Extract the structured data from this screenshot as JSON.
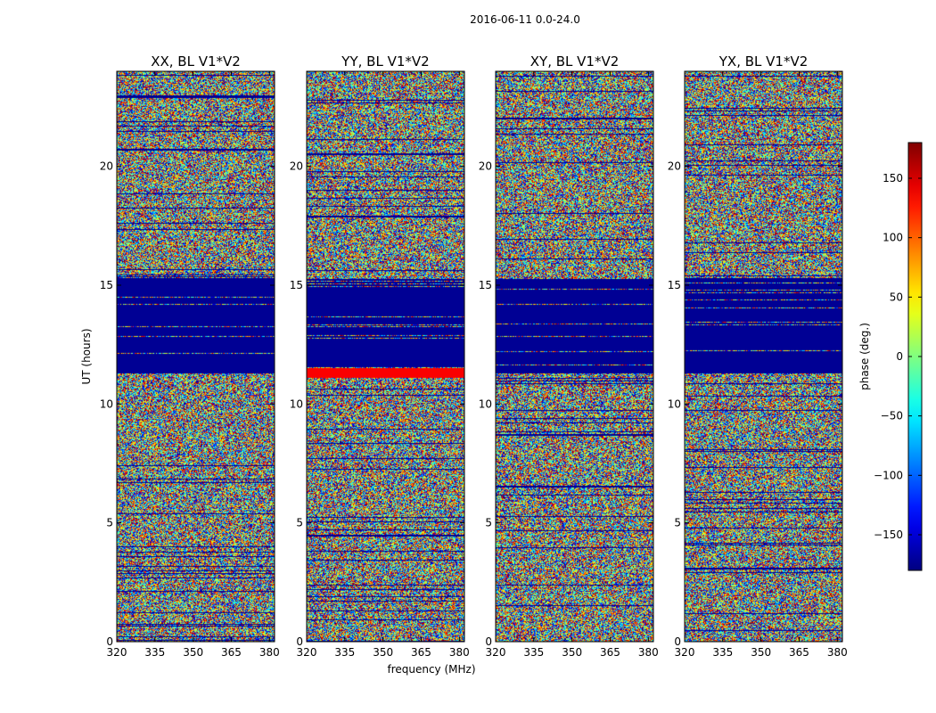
{
  "suptitle": "2016-06-11 0.0-24.0",
  "chart_data": {
    "type": "heatmap",
    "xlabel": "frequency (MHz)",
    "ylabel": "UT (hours)",
    "xlim": [
      320,
      382
    ],
    "ylim": [
      0,
      24
    ],
    "x_ticks": [
      320,
      335,
      350,
      365,
      380
    ],
    "y_ticks": [
      0,
      5,
      10,
      15,
      20
    ],
    "colorbar": {
      "label": "phase (deg.)",
      "colormap": "jet",
      "range": [
        -180,
        180
      ],
      "ticks": [
        -150,
        -100,
        -50,
        0,
        50,
        100,
        150
      ]
    },
    "panels": [
      {
        "title": "XX, BL V1*V2",
        "pol": "XX"
      },
      {
        "title": "YY, BL V1*V2",
        "pol": "YY"
      },
      {
        "title": "XY, BL V1*V2",
        "pol": "XY"
      },
      {
        "title": "YX, BL V1*V2",
        "pol": "YX"
      }
    ]
  }
}
